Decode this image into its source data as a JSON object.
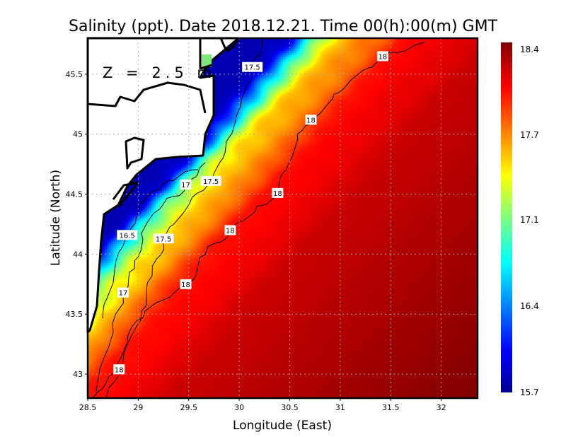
{
  "chart_data": {
    "type": "heatmap",
    "title": "Salinity (ppt). Date 2018.12.21. Time 00(h):00(m) GMT",
    "xlabel": "Longitude (East)",
    "ylabel": "Latitude (North)",
    "annotation": "Z = 2.5 m",
    "xlim": [
      28.5,
      32.36
    ],
    "ylim": [
      42.8,
      45.8
    ],
    "xticks": [
      28.5,
      29,
      29.5,
      30,
      30.5,
      31,
      31.5,
      32
    ],
    "xtick_labels": [
      "28.5",
      "29",
      "29.5",
      "30",
      "30.5",
      "31",
      "31.5",
      "32"
    ],
    "yticks": [
      43,
      43.5,
      44,
      44.5,
      45,
      45.5
    ],
    "ytick_labels": [
      "43",
      "43.5",
      "44",
      "44.5",
      "45",
      "45.5"
    ],
    "grid": true,
    "colorbar": {
      "range": [
        15.7,
        18.4
      ],
      "labels": [
        "18.4",
        "17.7",
        "17.1",
        "16.4",
        "15.7"
      ],
      "colormap": "jet"
    },
    "contour_levels": [
      16.5,
      17,
      17.5,
      18
    ],
    "contour_labels": [
      {
        "text": "18",
        "lon": 31.42,
        "lat": 45.65
      },
      {
        "text": "17.5",
        "lon": 30.13,
        "lat": 45.56
      },
      {
        "text": "18",
        "lon": 30.71,
        "lat": 45.12
      },
      {
        "text": "17.5",
        "lon": 29.72,
        "lat": 44.61
      },
      {
        "text": "17",
        "lon": 29.47,
        "lat": 44.58
      },
      {
        "text": "18",
        "lon": 30.38,
        "lat": 44.51
      },
      {
        "text": "18",
        "lon": 29.91,
        "lat": 44.2
      },
      {
        "text": "16.5",
        "lon": 28.89,
        "lat": 44.16
      },
      {
        "text": "17.5",
        "lon": 29.25,
        "lat": 44.13
      },
      {
        "text": "18",
        "lon": 29.47,
        "lat": 43.75
      },
      {
        "text": "17",
        "lon": 28.85,
        "lat": 43.68
      },
      {
        "text": "18",
        "lon": 28.81,
        "lat": 43.04
      }
    ]
  }
}
